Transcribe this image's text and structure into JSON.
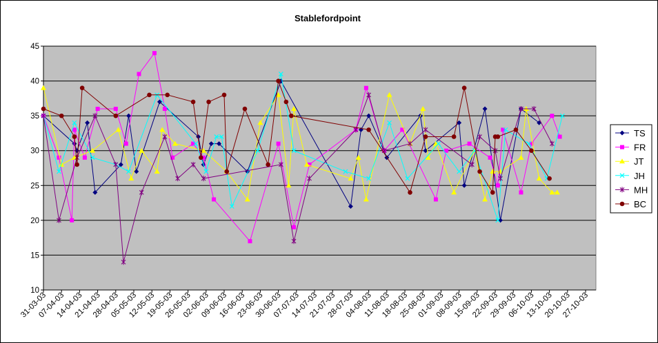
{
  "chart_data": {
    "type": "line",
    "title": "Stablefordpoint",
    "xlabel": "",
    "ylabel": "",
    "ylim": [
      10,
      45
    ],
    "yticks": [
      10,
      15,
      20,
      25,
      30,
      35,
      40,
      45
    ],
    "xlim": [
      "2003-03-31",
      "2003-10-31"
    ],
    "xticks": [
      "31-03-03",
      "07-04-03",
      "14-04-03",
      "21-04-03",
      "28-04-03",
      "05-05-03",
      "12-05-03",
      "19-05-03",
      "26-05-03",
      "02-06-03",
      "09-06-03",
      "16-06-03",
      "23-06-03",
      "30-06-03",
      "07-07-03",
      "14-07-03",
      "21-07-03",
      "28-07-03",
      "04-08-03",
      "11-08-03",
      "18-08-03",
      "25-08-03",
      "01-09-03",
      "08-09-03",
      "15-09-03",
      "22-09-03",
      "29-09-03",
      "06-10-03",
      "13-10-03",
      "20-10-03",
      "27-10-03"
    ],
    "grid": true,
    "legend_position": "right",
    "plot_background": "#C0C0C0",
    "series": [
      {
        "name": "TS",
        "color": "#000080",
        "marker": "diamond",
        "x": [
          "2003-03-31",
          "2003-04-12",
          "2003-04-13",
          "2003-04-17",
          "2003-04-20",
          "2003-04-30",
          "2003-05-03",
          "2003-05-06",
          "2003-05-15",
          "2003-05-30",
          "2003-06-01",
          "2003-06-04",
          "2003-06-07",
          "2003-06-18",
          "2003-07-01",
          "2003-07-28",
          "2003-08-01",
          "2003-08-04",
          "2003-08-11",
          "2003-08-24",
          "2003-08-26",
          "2003-09-08",
          "2003-09-10",
          "2003-09-18",
          "2003-09-24",
          "2003-10-02",
          "2003-10-09"
        ],
        "y": [
          35,
          31,
          30,
          34,
          24,
          28,
          35,
          27,
          37,
          32,
          28,
          31,
          31,
          27,
          40,
          22,
          33,
          35,
          29,
          35,
          30,
          34,
          25,
          36,
          20,
          36,
          34
        ]
      },
      {
        "name": "FR",
        "color": "#FF00FF",
        "marker": "square",
        "x": [
          "2003-03-31",
          "2003-04-06",
          "2003-04-11",
          "2003-04-12",
          "2003-04-16",
          "2003-04-21",
          "2003-04-28",
          "2003-05-02",
          "2003-05-07",
          "2003-05-13",
          "2003-05-17",
          "2003-05-20",
          "2003-05-28",
          "2003-06-01",
          "2003-06-05",
          "2003-06-19",
          "2003-06-30",
          "2003-07-06",
          "2003-07-12",
          "2003-07-30",
          "2003-08-03",
          "2003-08-10",
          "2003-08-17",
          "2003-08-30",
          "2003-09-03",
          "2003-09-12",
          "2003-09-20",
          "2003-09-23",
          "2003-09-25",
          "2003-10-02",
          "2003-10-06",
          "2003-10-14",
          "2003-10-17"
        ],
        "y": [
          35,
          29,
          20,
          33,
          29,
          36,
          36,
          31,
          41,
          44,
          36,
          29,
          31,
          29,
          23,
          17,
          31,
          19,
          28,
          33,
          39,
          30,
          33,
          23,
          30,
          31,
          29,
          25,
          33,
          24,
          31,
          35,
          32
        ]
      },
      {
        "name": "JT",
        "color": "#FFFF00",
        "marker": "triangle",
        "x": [
          "2003-03-31",
          "2003-04-07",
          "2003-04-12",
          "2003-04-19",
          "2003-04-29",
          "2003-05-04",
          "2003-05-08",
          "2003-05-14",
          "2003-05-16",
          "2003-05-21",
          "2003-06-01",
          "2003-06-10",
          "2003-06-18",
          "2003-06-23",
          "2003-06-30",
          "2003-07-04",
          "2003-07-06",
          "2003-07-11",
          "2003-07-28",
          "2003-07-31",
          "2003-08-03",
          "2003-08-12",
          "2003-08-20",
          "2003-08-25",
          "2003-08-27",
          "2003-08-30",
          "2003-09-06",
          "2003-09-14",
          "2003-09-18",
          "2003-09-21",
          "2003-09-24",
          "2003-10-02",
          "2003-10-04",
          "2003-10-09",
          "2003-10-14",
          "2003-10-16"
        ],
        "y": [
          39,
          28,
          29,
          30,
          33,
          26,
          30,
          27,
          33,
          31,
          30,
          27,
          23,
          34,
          38,
          25,
          36,
          28,
          26,
          29,
          23,
          38,
          31,
          36,
          29,
          31,
          24,
          30,
          23,
          27,
          27,
          29,
          36,
          26,
          24,
          24
        ]
      },
      {
        "name": "JH",
        "color": "#00FFFF",
        "marker": "x",
        "x": [
          "2003-03-31",
          "2003-04-06",
          "2003-04-12",
          "2003-04-19",
          "2003-04-28",
          "2003-05-03",
          "2003-05-14",
          "2003-05-29",
          "2003-06-02",
          "2003-06-06",
          "2003-06-08",
          "2003-06-12",
          "2003-06-22",
          "2003-07-01",
          "2003-07-06",
          "2003-07-26",
          "2003-08-04",
          "2003-08-12",
          "2003-08-19",
          "2003-08-31",
          "2003-09-08",
          "2003-09-14",
          "2003-09-23",
          "2003-09-26",
          "2003-10-05",
          "2003-10-12",
          "2003-10-18"
        ],
        "y": [
          35,
          27,
          34,
          29,
          28,
          27,
          38,
          31,
          27,
          32,
          32,
          22,
          30,
          41,
          30,
          27,
          26,
          34,
          26,
          31,
          27,
          30,
          20,
          33,
          31,
          26,
          35
        ]
      },
      {
        "name": "MH",
        "color": "#800080",
        "marker": "star",
        "x": [
          "2003-03-31",
          "2003-04-06",
          "2003-04-13",
          "2003-04-20",
          "2003-04-28",
          "2003-05-01",
          "2003-05-08",
          "2003-05-17",
          "2003-05-22",
          "2003-05-28",
          "2003-06-01",
          "2003-07-01",
          "2003-07-06",
          "2003-07-12",
          "2003-07-30",
          "2003-08-04",
          "2003-08-10",
          "2003-08-20",
          "2003-08-26",
          "2003-09-13",
          "2003-09-16",
          "2003-09-22",
          "2003-09-24",
          "2003-10-02",
          "2003-10-07",
          "2003-10-14"
        ],
        "y": [
          35,
          20,
          29,
          35,
          28,
          14,
          24,
          32,
          26,
          28,
          26,
          28,
          17,
          26,
          33,
          38,
          30,
          31,
          33,
          28,
          32,
          30,
          26,
          36,
          36,
          31
        ]
      },
      {
        "name": "BC",
        "color": "#800000",
        "marker": "circle",
        "x": [
          "2003-03-31",
          "2003-04-07",
          "2003-04-12",
          "2003-04-13",
          "2003-04-15",
          "2003-04-28",
          "2003-05-11",
          "2003-05-18",
          "2003-05-28",
          "2003-05-31",
          "2003-06-03",
          "2003-06-09",
          "2003-06-10",
          "2003-06-17",
          "2003-06-26",
          "2003-06-30",
          "2003-07-03",
          "2003-07-05",
          "2003-08-04",
          "2003-08-20",
          "2003-08-26",
          "2003-09-06",
          "2003-09-10",
          "2003-09-16",
          "2003-09-21",
          "2003-09-22",
          "2003-09-23",
          "2003-09-30",
          "2003-10-06",
          "2003-10-13"
        ],
        "y": [
          36,
          35,
          32,
          28,
          39,
          35,
          38,
          38,
          37,
          29,
          37,
          38,
          27,
          36,
          28,
          40,
          37,
          35,
          33,
          24,
          32,
          32,
          39,
          27,
          24,
          32,
          32,
          33,
          30,
          26
        ]
      }
    ]
  }
}
